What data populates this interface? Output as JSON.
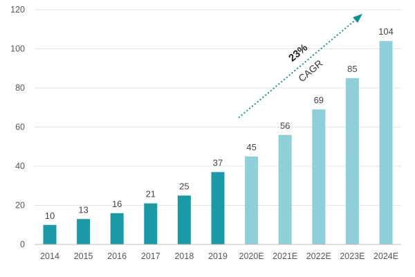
{
  "chart_data": {
    "type": "bar",
    "title": "",
    "xlabel": "",
    "ylabel": "",
    "ylim": [
      0,
      120
    ],
    "yticks": [
      0,
      20,
      40,
      60,
      80,
      100,
      120
    ],
    "grid": true,
    "categories": [
      "2014",
      "2015",
      "2016",
      "2017",
      "2018",
      "2019",
      "2020E",
      "2021E",
      "2022E",
      "2023E",
      "2024E"
    ],
    "values": [
      10,
      13,
      16,
      21,
      25,
      37,
      45,
      56,
      69,
      85,
      104
    ],
    "data_labels": [
      "10",
      "13",
      "16",
      "21",
      "25",
      "37",
      "45",
      "56",
      "69",
      "85",
      "104"
    ],
    "bar_colors": {
      "actual": "#1a9aa6",
      "forecast": "#8fd0d8"
    },
    "annotation": {
      "growth_rate": "23%",
      "label": "CAGR",
      "arrow_color": "#1a8a94"
    }
  }
}
